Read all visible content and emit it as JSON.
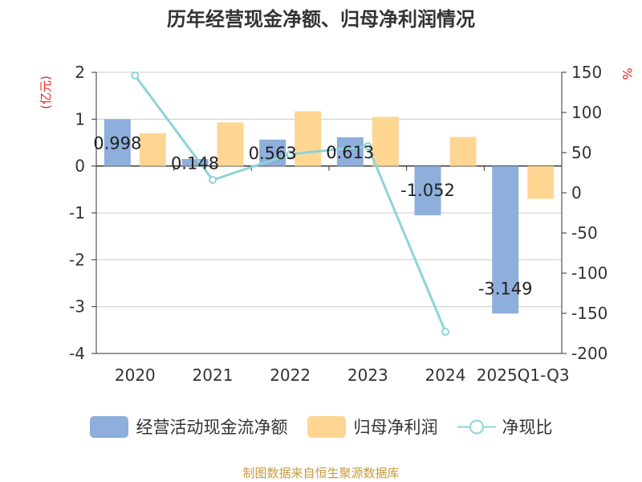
{
  "title": "历年经营现金净额、归母净利润情况",
  "source": "制图数据来自恒生聚源数据库",
  "colors": {
    "operating_cash": "#8eaedb",
    "net_profit": "#ffd592",
    "ratio": "#8ed3d8",
    "left_unit": "#e32626",
    "right_unit": "#e32626"
  },
  "chart_data": {
    "type": "bar+line",
    "categories": [
      "2020",
      "2021",
      "2022",
      "2023",
      "2024",
      "2025Q1-Q3"
    ],
    "left_axis": {
      "unit": "(亿元)",
      "min": -4,
      "max": 2,
      "ticks": [
        -4,
        -3,
        -2,
        -1,
        0,
        1,
        2
      ]
    },
    "right_axis": {
      "unit": "%",
      "min": -200,
      "max": 150,
      "ticks": [
        -200,
        -150,
        -100,
        -50,
        0,
        50,
        100,
        150
      ]
    },
    "series": [
      {
        "name": "经营活动现金流净额",
        "type": "bar",
        "axis": "left",
        "values": [
          0.998,
          0.148,
          0.563,
          0.613,
          -1.052,
          -3.149
        ],
        "labels": [
          "0.998",
          "0.148",
          "0.563",
          "0.613",
          "-1.052",
          "-3.149"
        ]
      },
      {
        "name": "归母净利润",
        "type": "bar",
        "axis": "left",
        "values": [
          0.7,
          0.93,
          1.17,
          1.05,
          0.62,
          -0.7
        ]
      },
      {
        "name": "净现比",
        "type": "line",
        "axis": "right",
        "values": [
          146,
          16,
          48,
          58,
          -173,
          null
        ]
      }
    ]
  }
}
